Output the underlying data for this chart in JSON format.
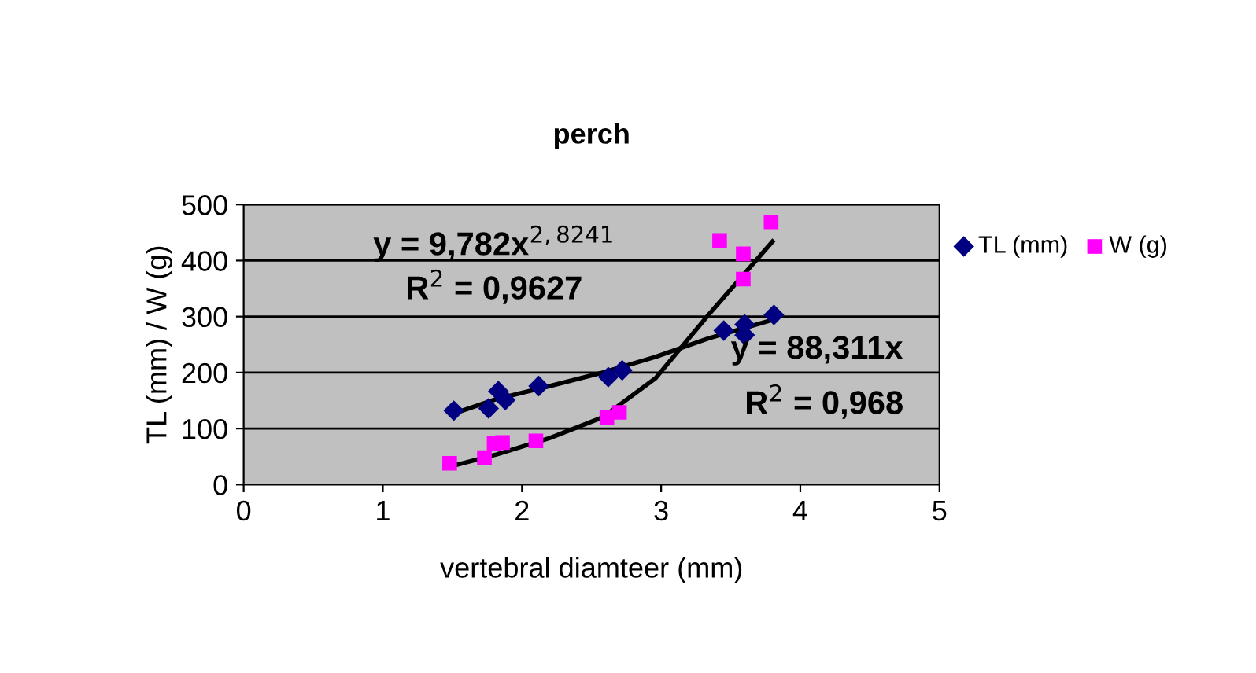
{
  "chart_data": {
    "type": "scatter",
    "title": "perch",
    "xlabel": "vertebral diamteer (mm)",
    "ylabel": "TL (mm) / W (g)",
    "xlim": [
      0,
      5
    ],
    "xticks": [
      0,
      1,
      2,
      3,
      4,
      5
    ],
    "ylim": [
      0,
      500
    ],
    "yticks": [
      0,
      100,
      200,
      300,
      400,
      500
    ],
    "grid": "y",
    "legend": "right",
    "series": [
      {
        "name": "TL (mm)",
        "color": "#000080",
        "marker": "diamond",
        "x": [
          1.51,
          1.76,
          1.83,
          1.88,
          2.12,
          2.62,
          2.72,
          3.45,
          3.6,
          3.6,
          3.81
        ],
        "values": [
          132,
          136,
          167,
          151,
          176,
          192,
          204,
          275,
          286,
          267,
          303
        ]
      },
      {
        "name": "W (g)",
        "color": "#ff00ff",
        "marker": "square",
        "x": [
          1.48,
          1.73,
          1.8,
          1.86,
          2.1,
          2.61,
          2.7,
          3.42,
          3.59,
          3.59,
          3.79
        ],
        "values": [
          38,
          48,
          74,
          75,
          78,
          120,
          129,
          436,
          412,
          367,
          469
        ]
      },
      {
        "type": "line",
        "color": "#000000",
        "x": [
          1.51,
          1.82,
          2.2,
          2.58,
          2.96,
          3.34,
          3.8
        ],
        "values": [
          34,
          54,
          83,
          120,
          190,
          303,
          434
        ]
      },
      {
        "type": "line",
        "color": "#000000",
        "x": [
          1.51,
          1.82,
          2.2,
          2.58,
          2.96,
          3.34,
          3.8
        ],
        "values": [
          127,
          153,
          176,
          200,
          228,
          261,
          294
        ]
      }
    ],
    "annotations": [
      "y = 9,782x$^{2,8241}$",
      "R$^{2}$ = 0,9627",
      "y = 88,311x",
      "R$^{2}$ = 0,968"
    ]
  }
}
